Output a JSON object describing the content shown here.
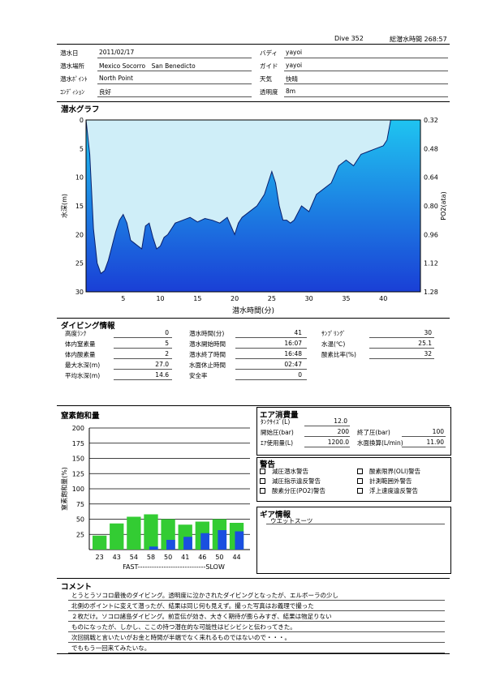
{
  "header": {
    "dive_label": "Dive 352",
    "total_time_label": "総潜水時間 268:57"
  },
  "info": {
    "date_label": "潜水日",
    "date": "2011/02/17",
    "buddy_label": "バディ",
    "buddy": "yayoi",
    "place_label": "潜水場所",
    "place": "Mexico Socorro　San Benedicto",
    "guide_label": "ガイド",
    "guide": "yayoi",
    "point_label": "潜水ﾎﾟｲﾝﾄ",
    "point": "North Point",
    "weather_label": "天気",
    "weather": "快晴",
    "condition_label": "ｺﾝﾃﾞｨｼｮﾝ",
    "condition": "良好",
    "visibility_label": "透明度",
    "visibility": "8m"
  },
  "graph": {
    "section_title": "潜水グラフ",
    "ylabel_left": "水深(m)",
    "ylabel_right": "PO2(ata)",
    "xlabel": "潜水時間(分)",
    "colors": {
      "sky": "#cfeef8",
      "water_top": "#1fc4f0",
      "water_bottom": "#1a3fd6",
      "line": "#0a1f6b"
    }
  },
  "chart_data": [
    {
      "type": "area",
      "title": "潜水グラフ",
      "xlabel": "潜水時間(分)",
      "ylabel": "水深(m)",
      "y2label": "PO2(ata)",
      "xlim": [
        0,
        45
      ],
      "ylim": [
        30,
        0
      ],
      "y2lim": [
        1.28,
        0.32
      ],
      "xticks": [
        5,
        10,
        15,
        20,
        25,
        30,
        35,
        40
      ],
      "yticks": [
        0,
        5,
        10,
        15,
        20,
        25,
        30
      ],
      "y2ticks": [
        "0.32",
        "0.48",
        "0.64",
        "0.80",
        "0.96",
        "1.12",
        "1.28"
      ],
      "x": [
        0,
        0.5,
        1,
        1.5,
        2,
        2.5,
        3,
        3.5,
        4,
        4.5,
        5,
        5.5,
        6,
        6.5,
        7,
        7.5,
        8,
        8.5,
        9,
        9.5,
        10,
        10.5,
        11,
        11.5,
        12,
        13,
        14,
        15,
        16,
        17,
        18,
        19,
        20,
        20.5,
        21,
        22,
        23,
        24,
        25,
        25.5,
        26,
        26.5,
        27,
        27.5,
        28,
        29,
        30,
        31,
        32,
        33,
        34,
        35,
        36,
        37,
        38,
        39,
        40,
        40.5,
        41,
        41.5,
        42,
        43,
        44,
        45
      ],
      "depth": [
        0,
        6,
        19,
        25,
        26.8,
        26.3,
        24.5,
        22,
        19.5,
        17.5,
        16.5,
        18,
        21,
        21.5,
        22,
        22.5,
        18.5,
        18,
        20.5,
        22.5,
        22,
        20.5,
        20,
        19,
        18,
        17.5,
        17,
        17.8,
        17.2,
        17.5,
        18,
        17,
        20,
        18,
        17,
        16,
        15,
        13,
        9,
        11,
        15,
        17.5,
        17.5,
        18,
        17.5,
        15,
        16,
        13,
        12,
        11,
        8,
        7,
        8,
        6,
        5.5,
        5,
        4.5,
        3.5,
        0,
        0,
        0,
        0,
        0,
        0
      ],
      "series": [
        {
          "name": "",
          "values": "depth"
        }
      ]
    },
    {
      "type": "bar",
      "title": "窒素飽和量",
      "ylabel": "窒素飽和量(%)",
      "ylim": [
        0,
        200
      ],
      "yticks": [
        25,
        50,
        75,
        100,
        125,
        150,
        175,
        200
      ],
      "categories": [
        "23",
        "43",
        "54",
        "58",
        "50",
        "41",
        "46",
        "50",
        "44"
      ],
      "series": [
        {
          "name": "",
          "values": [
            23,
            43,
            54,
            58,
            50,
            41,
            46,
            50,
            44
          ]
        },
        {
          "name": "",
          "values": [
            0,
            0,
            0,
            5,
            16,
            21,
            27,
            32,
            30
          ]
        }
      ],
      "colors": {
        "green": "#33cc33",
        "blue": "#1a4fe0"
      },
      "axis_caption": "FAST-----------------------------SLOW"
    }
  ],
  "diving": {
    "section_title": "ダイビング情報",
    "col1": [
      {
        "label": "高度ﾗﾝｸ",
        "value": "0"
      },
      {
        "label": "体内窒素量",
        "value": "5"
      },
      {
        "label": "体内酸素量",
        "value": "2"
      },
      {
        "label": "最大水深(m)",
        "value": "27.0"
      },
      {
        "label": "平均水深(m)",
        "value": "14.6"
      }
    ],
    "col2": [
      {
        "label": "潜水時間(分)",
        "value": "41"
      },
      {
        "label": "潜水開始時間",
        "value": "16:07"
      },
      {
        "label": "潜水終了時間",
        "value": "16:48"
      },
      {
        "label": "水面休止時間",
        "value": "02:47"
      },
      {
        "label": "安全率",
        "value": "0"
      }
    ],
    "col3": [
      {
        "label": "ｻﾝﾌﾟﾘﾝｸﾞ",
        "value": "30"
      },
      {
        "label": "水温(℃)",
        "value": "25.1"
      },
      {
        "label": "酸素比率(%)",
        "value": "32"
      }
    ]
  },
  "nitrogen": {
    "section_title": "窒素飽和量",
    "ylabel": "窒素飽和量(%)"
  },
  "air": {
    "section_title": "エア消費量",
    "tank_label": "ﾀﾝｸｻｲｽﾞ(L)",
    "tank": "12.0",
    "start_label": "開始圧(bar)",
    "start": "200",
    "end_label": "終了圧(bar)",
    "end": "100",
    "used_label": "ｴｱ使用量(L)",
    "used": "1200.0",
    "surface_label": "水面換算(L/min)",
    "surface": "11.90"
  },
  "warnings": {
    "section_title": "警告",
    "items": [
      "減圧潜水警告",
      "減圧指示違反警告",
      "酸素分圧(PO2)警告",
      "酸素限界(OLI)警告",
      "計測範囲外警告",
      "浮上速度違反警告"
    ]
  },
  "gear": {
    "section_title": "ギア情報",
    "value": "ウエットスーツ"
  },
  "comment": {
    "section_title": "コメント",
    "lines": [
      "とうとうソコロ最後のダイビング。透明度に泣かされたダイビングとなったが、エルボーラの少し",
      "北側のポイントに変えて潜ったが、結果は同じ何も見えず。撮った写真はお義理で撮った",
      "２枚だけ。ソコロ諸島ダイビング。前宣伝が効き、大きく期待が膨らみすぎ、結果は物足りない",
      "ものになったが、しかし、ここの持つ潜在的な可能性はビシビシと伝わってきた。",
      "次回挑戦と言いたいがお金と時間が半端でなく来れるものではないので・・・。",
      "でももう一回来てみたいな。"
    ]
  }
}
